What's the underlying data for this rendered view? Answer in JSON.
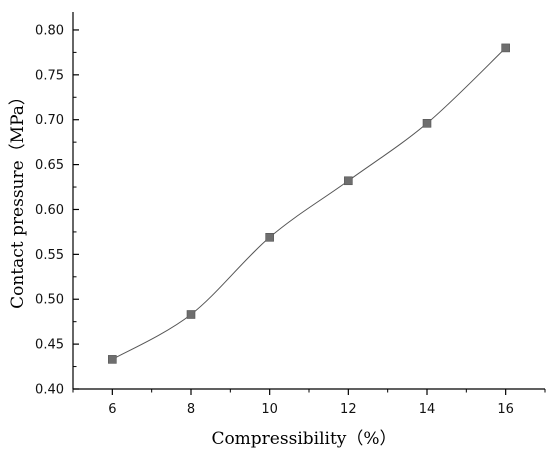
{
  "chart_data": {
    "type": "line",
    "xlabel": "Compressibility（%）",
    "ylabel": "Contact pressure（MPa）",
    "x": [
      6,
      8,
      10,
      12,
      14,
      16
    ],
    "series": [
      {
        "values": [
          0.433,
          0.483,
          0.569,
          0.632,
          0.696,
          0.78
        ]
      }
    ],
    "xlim": [
      5,
      17
    ],
    "ylim": [
      0.4,
      0.82
    ],
    "xticks": [
      6,
      8,
      10,
      12,
      14,
      16
    ],
    "yticks": [
      "0.40",
      "0.45",
      "0.50",
      "0.55",
      "0.60",
      "0.65",
      "0.70",
      "0.75",
      "0.80"
    ],
    "marker": "square",
    "line_style": "smooth",
    "grid": false,
    "colors": {
      "line": "#555555",
      "marker": "#6e6e6e",
      "axis": "#000000"
    }
  }
}
